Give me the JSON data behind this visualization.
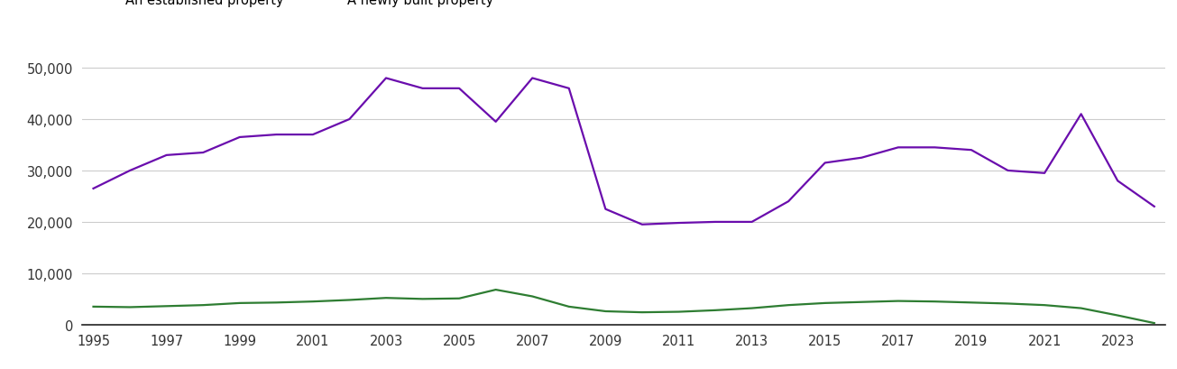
{
  "years": [
    1995,
    1996,
    1997,
    1998,
    1999,
    2000,
    2001,
    2002,
    2003,
    2004,
    2005,
    2006,
    2007,
    2008,
    2009,
    2010,
    2011,
    2012,
    2013,
    2014,
    2015,
    2016,
    2017,
    2018,
    2019,
    2020,
    2021,
    2022,
    2023,
    2024
  ],
  "new_homes": [
    3500,
    3400,
    3600,
    3800,
    4200,
    4300,
    4500,
    4800,
    5200,
    5000,
    5100,
    6800,
    5500,
    3500,
    2600,
    2400,
    2500,
    2800,
    3200,
    3800,
    4200,
    4400,
    4600,
    4500,
    4300,
    4100,
    3800,
    3200,
    1800,
    300
  ],
  "established_homes": [
    26500,
    30000,
    33000,
    33500,
    36500,
    37000,
    37000,
    40000,
    48000,
    46000,
    46000,
    39500,
    48000,
    46000,
    22500,
    19500,
    19800,
    20000,
    20000,
    24000,
    31500,
    32500,
    34500,
    34500,
    34000,
    30000,
    29500,
    41000,
    28000,
    23000
  ],
  "new_color": "#2e7d32",
  "established_color": "#6a0dad",
  "ylim": [
    0,
    54000
  ],
  "yticks": [
    0,
    10000,
    20000,
    30000,
    40000,
    50000
  ],
  "ytick_labels": [
    "0",
    "10,000",
    "20,000",
    "30,000",
    "40,000",
    "50,000"
  ],
  "xticks": [
    1995,
    1997,
    1999,
    2001,
    2003,
    2005,
    2007,
    2009,
    2011,
    2013,
    2015,
    2017,
    2019,
    2021,
    2023
  ],
  "background_color": "#ffffff",
  "grid_color": "#cccccc",
  "legend_fontsize": 10.5,
  "tick_fontsize": 10.5,
  "line_width": 1.6
}
